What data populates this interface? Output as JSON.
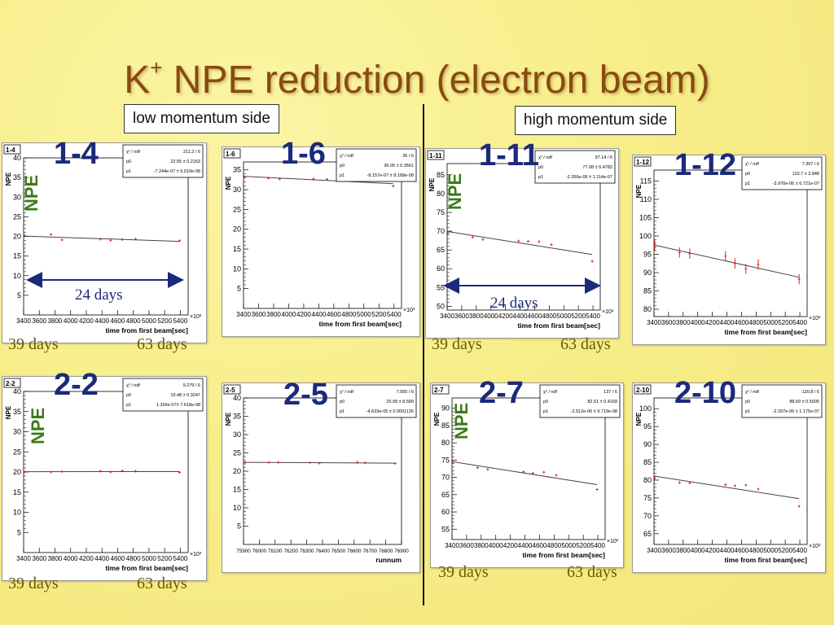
{
  "title": {
    "main": "K",
    "sup": "+",
    "rest": " NPE reduction (electron beam)"
  },
  "low_side": "low momentum side",
  "high_side": "high momentum side",
  "npe_tag": "NPE",
  "arrow_label": "24 days",
  "days": {
    "d39": "39 days",
    "d63": "63 days"
  },
  "xlabel_time": "time from first beam[sec]",
  "xlabel_run": "runnum",
  "x10_3": "×10³",
  "chart_data": [
    {
      "id": "1-4",
      "type": "scatter",
      "label": "1-4",
      "ylabel": "NPE",
      "xlabel": "time from first beam[sec]",
      "xlim": [
        3400,
        5500
      ],
      "ylim": [
        0,
        40
      ],
      "yticks": [
        5,
        10,
        15,
        20,
        25,
        30,
        35,
        40
      ],
      "xticks": [
        3400,
        3600,
        3800,
        4000,
        4200,
        4400,
        4600,
        4800,
        5000,
        5200,
        5400
      ],
      "x": [
        3410,
        3750,
        3890,
        4380,
        4510,
        4660,
        4830,
        5390
      ],
      "y": [
        20.2,
        20.5,
        19.1,
        19.3,
        19.0,
        19.2,
        19.3,
        18.9
      ],
      "fit": {
        "chi2ndf": "211.2 / 6",
        "p0": "22.55 ± 0.2163",
        "p1": "-7.244e-07 ± 5.019e-08"
      }
    },
    {
      "id": "1-6",
      "type": "scatter",
      "label": "1-6",
      "ylabel": "NPE",
      "xlabel": "time from first beam[sec]",
      "xlim": [
        3400,
        5500
      ],
      "ylim": [
        0,
        37
      ],
      "yticks": [
        5,
        10,
        15,
        20,
        25,
        30,
        35
      ],
      "xticks": [
        3400,
        3600,
        3800,
        4000,
        4200,
        4400,
        4600,
        4800,
        5000,
        5200,
        5400
      ],
      "x": [
        3410,
        3730,
        3880,
        4330,
        4510,
        4660,
        4820,
        5390
      ],
      "y": [
        33.2,
        32.9,
        32.7,
        32.7,
        32.6,
        32.6,
        32.3,
        30.9
      ],
      "fit": {
        "chi2ndf": "36 / 6",
        "p0": "36.05 ± 0.3561",
        "p1": "-8.157e-07 ± 8.168e-08"
      }
    },
    {
      "id": "1-11",
      "type": "scatter",
      "label": "1-11",
      "ylabel": "NPE",
      "xlabel": "time from first beam[sec]",
      "xlim": [
        3400,
        5500
      ],
      "ylim": [
        49,
        88
      ],
      "yticks": [
        50,
        55,
        60,
        65,
        70,
        75,
        80,
        85
      ],
      "xticks": [
        3400,
        3600,
        3800,
        4000,
        4200,
        4400,
        4600,
        4800,
        5000,
        5200,
        5400
      ],
      "x": [
        3410,
        3750,
        3890,
        4380,
        4510,
        4660,
        4830,
        5390
      ],
      "y": [
        69.5,
        68.4,
        67.8,
        67.4,
        67.3,
        67.2,
        66.4,
        62.0
      ],
      "fit": {
        "chi2ndf": "97.14 / 6",
        "p0": "77.08 ± 0.4782",
        "p1": "-2.266e-06 ± 1.114e-07"
      }
    },
    {
      "id": "1-12",
      "type": "scatter",
      "label": "1-12",
      "ylabel": "NPE",
      "xlabel": "time from first beam[sec]",
      "xlim": [
        3400,
        5500
      ],
      "ylim": [
        78,
        118
      ],
      "yticks": [
        80,
        85,
        90,
        95,
        100,
        105,
        110,
        115
      ],
      "xticks": [
        3400,
        3600,
        3800,
        4000,
        4200,
        4400,
        4600,
        4800,
        5000,
        5200,
        5400
      ],
      "x": [
        3410,
        3750,
        3890,
        4380,
        4510,
        4660,
        4830,
        5390
      ],
      "y": [
        97.5,
        95.5,
        95.2,
        94.5,
        92.5,
        91.0,
        92.2,
        88.2
      ],
      "fit": {
        "chi2ndf": "7.307 / 6",
        "p0": "110.7 ± 3.848",
        "p1": "-3.976e-06 ± 6.721e-07"
      }
    },
    {
      "id": "2-2",
      "type": "scatter",
      "label": "2-2",
      "ylabel": "NPE",
      "xlabel": "time from first beam[sec]",
      "xlim": [
        3400,
        5500
      ],
      "ylim": [
        0,
        40
      ],
      "yticks": [
        5,
        10,
        15,
        20,
        25,
        30,
        35,
        40
      ],
      "xticks": [
        3400,
        3600,
        3800,
        4000,
        4200,
        4400,
        4600,
        4800,
        5000,
        5200,
        5400
      ],
      "x": [
        3410,
        3750,
        3890,
        4380,
        4510,
        4660,
        4830,
        5390
      ],
      "y": [
        20.0,
        20.0,
        20.1,
        20.2,
        20.0,
        20.3,
        20.2,
        19.9
      ],
      "fit": {
        "chi2ndf": "9.279 / 6",
        "p0": "19.48 ± 0.3247",
        "p1": "1.336e-07± 7.618e-08"
      }
    },
    {
      "id": "2-5",
      "type": "scatter",
      "label": "2-5",
      "ylabel": "NPE",
      "xlabel": "runnum",
      "xlim": [
        75900,
        76900
      ],
      "ylim": [
        0,
        40
      ],
      "yticks": [
        5,
        10,
        15,
        20,
        25,
        30,
        35,
        40
      ],
      "xticks": [
        75900,
        76000,
        76100,
        76200,
        76300,
        76400,
        76500,
        76600,
        76700,
        76800,
        76900
      ],
      "x": [
        75910,
        76060,
        76120,
        76320,
        76380,
        76620,
        76670,
        76860
      ],
      "y": [
        22.4,
        22.4,
        22.4,
        22.3,
        22.2,
        22.4,
        22.3,
        22.1
      ],
      "fit": {
        "chi2ndf": "7.565 / 6",
        "p0": "25.99 ± 8.589",
        "p1": "-4.633e-05 ± 0.0001126"
      }
    },
    {
      "id": "2-7",
      "type": "scatter",
      "label": "2-7",
      "ylabel": "NPE",
      "xlabel": "time from first beam[sec]",
      "xlim": [
        3400,
        5500
      ],
      "ylim": [
        52,
        93
      ],
      "yticks": [
        55,
        60,
        65,
        70,
        75,
        80,
        85,
        90
      ],
      "xticks": [
        3400,
        3600,
        3800,
        4000,
        4200,
        4400,
        4600,
        4800,
        5000,
        5200,
        5400
      ],
      "x": [
        3410,
        3750,
        3890,
        4380,
        4510,
        4660,
        4830,
        5390
      ],
      "y": [
        74.5,
        72.8,
        72.3,
        71.6,
        71.2,
        71.5,
        70.6,
        66.5
      ],
      "fit": {
        "chi2ndf": "137 / 6",
        "p0": "82.51 ± 0.4169",
        "p1": "-2.512e-06 ± 9.719e-08"
      }
    },
    {
      "id": "2-10",
      "type": "scatter",
      "label": "2-10",
      "ylabel": "NPE",
      "xlabel": "time from first beam[sec]",
      "xlim": [
        3400,
        5500
      ],
      "ylim": [
        62,
        103
      ],
      "yticks": [
        65,
        70,
        75,
        80,
        85,
        90,
        95,
        100
      ],
      "xticks": [
        3400,
        3600,
        3800,
        4000,
        4200,
        4400,
        4600,
        4800,
        5000,
        5200,
        5400
      ],
      "x": [
        3410,
        3750,
        3890,
        4380,
        4510,
        4660,
        4830,
        5390
      ],
      "y": [
        80.5,
        79.3,
        79.2,
        78.7,
        78.4,
        78.6,
        77.5,
        72.7
      ],
      "fit": {
        "chi2ndf": "120.8 / 6",
        "p0": "88.69 ± 0.5005",
        "p1": "-2.297e-06 ± 1.175e-07"
      }
    }
  ]
}
